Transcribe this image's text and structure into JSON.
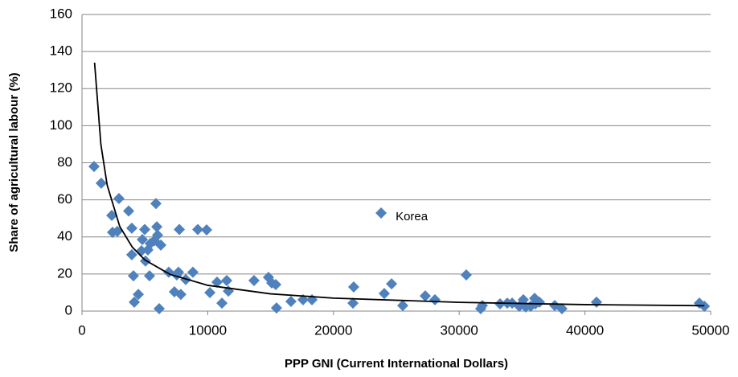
{
  "chart_data": {
    "type": "scatter",
    "xlabel": "PPP GNI (Current International Dollars)",
    "ylabel": "Share of agricultural labour (%)",
    "annotation": "Korea",
    "color": "#4f81bd",
    "x": [
      960,
      1530,
      2370,
      2430,
      2810,
      2940,
      3710,
      3960,
      3960,
      4090,
      4160,
      4480,
      4730,
      4800,
      4990,
      5050,
      5370,
      5430,
      5240,
      5750,
      5880,
      5950,
      6010,
      6140,
      6270,
      6900,
      7350,
      7540,
      7670,
      7740,
      7860,
      8250,
      8820,
      9210,
      9910,
      10170,
      10740,
      11130,
      11510,
      11640,
      13680,
      14830,
      15090,
      15410,
      15470,
      16620,
      17580,
      18290,
      21610,
      21550,
      23790,
      24040,
      24620,
      25510,
      27300,
      28070,
      30560,
      31710,
      31840,
      33250,
      33820,
      34210,
      34780,
      35100,
      35290,
      35680,
      36000,
      36060,
      36380,
      37600,
      38170,
      40920,
      49100,
      49500
    ],
    "values": [
      78,
      69,
      51.6,
      42.5,
      43,
      60.7,
      54,
      44.7,
      30.4,
      19,
      4.8,
      9,
      32.5,
      38.6,
      44,
      27,
      19,
      36.4,
      33,
      38,
      58,
      45.5,
      41,
      1.3,
      35.6,
      21,
      10.4,
      19.5,
      21,
      44,
      9,
      17,
      21,
      44,
      43.8,
      10,
      15.6,
      4.3,
      16.5,
      10.8,
      16.5,
      18.2,
      15.2,
      14.3,
      1.7,
      5.2,
      6.1,
      6.1,
      13,
      4.3,
      52.9,
      9.5,
      14.7,
      3,
      8.2,
      6.1,
      19.5,
      1.3,
      3,
      3.9,
      4.3,
      4.3,
      2.6,
      6.1,
      2.2,
      2.6,
      6.9,
      3.9,
      4.8,
      3,
      1.3,
      4.8,
      4.3,
      2.6
    ],
    "trendline": {
      "color": "#000000",
      "x": [
        1000,
        1500,
        2000,
        3000,
        4000,
        5000,
        7000,
        10000,
        15000,
        20000,
        30000,
        40000,
        49500
      ],
      "values": [
        134,
        90,
        68,
        45.7,
        34.5,
        27.6,
        19.8,
        13.9,
        9.3,
        7.0,
        4.7,
        3.5,
        2.9
      ]
    },
    "xlim": [
      0,
      50000
    ],
    "xticks": [
      0,
      10000,
      20000,
      30000,
      40000,
      50000
    ],
    "ylim": [
      0,
      160
    ],
    "yticks": [
      0,
      20,
      40,
      60,
      80,
      100,
      120,
      140,
      160
    ],
    "grid": true
  }
}
